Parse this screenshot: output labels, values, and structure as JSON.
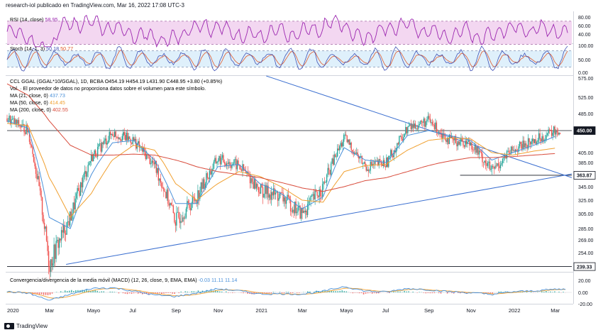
{
  "header": "research-iol publicado en TradingView.com, Mar 16, 2022 17:08 UTC-3",
  "footer": "TradingView",
  "colors": {
    "rsi": "#9c27b0",
    "rsi_band": "#f3d7f1",
    "stoch_k": "#3f51b5",
    "stoch_d": "#e05a2b",
    "stoch_band": "#dff0fb",
    "up": "#26a69a",
    "down": "#ef5350",
    "ma21": "#4a90d9",
    "ma50": "#f0a030",
    "ma200": "#d84b3b",
    "trendline": "#3b6fd0",
    "hline": "#131722",
    "macd_line": "#4a90d9",
    "signal_line": "#f0a030"
  },
  "rsi": {
    "label": "RSI (14, close)",
    "value": "58.95",
    "ticks": [
      "80.00",
      "60.00",
      "40.00"
    ]
  },
  "stoch": {
    "label": "Stoch (14, 1, 3)",
    "k": "50.18",
    "d": "50.77",
    "ticks": [
      "100.00",
      "50.00",
      "0.00"
    ]
  },
  "price": {
    "legend_symbol": "CCL GGAL (GGAL*10/GGAL), 1D, BCBA",
    "legend_values": "O454.19 H454.19 L431.90 C448.95 +3.80 (+0.85%)",
    "legend_vol": "Vol. · El proveedor de datos no proporciona datos sobre el volumen para este símbolo.",
    "ma21": {
      "label": "MA (21, close, 0)",
      "value": "437.73"
    },
    "ma50": {
      "label": "MA (50, close, 0)",
      "value": "414.45"
    },
    "ma200": {
      "label": "MA (200, close, 0)",
      "value": "402.55"
    },
    "ticks": [
      "575.00",
      "525.00",
      "485.00",
      "450.00",
      "405.00",
      "385.00",
      "345.00",
      "325.00",
      "305.00",
      "285.00",
      "269.00",
      "254.00",
      "239.00"
    ],
    "badges": [
      {
        "text": "450.00",
        "dark": true
      },
      {
        "text": "363.87",
        "dark": false
      },
      {
        "text": "239.33",
        "dark": false
      }
    ],
    "resistance": 450.0,
    "support": 363.87,
    "floor": 239.33
  },
  "macd": {
    "label": "Convergencia/divergencia de la media móvil (MACD) (12, 26, close, 9, EMA, EMA)",
    "values": "-0.03  11.11  11.14",
    "ticks": [
      "20.00",
      "0.00",
      "-20.00"
    ]
  },
  "x_axis": [
    "2020",
    "Mar",
    "Mayo",
    "Jul",
    "Sep",
    "Nov",
    "2021",
    "Mar",
    "Mayo",
    "Jul",
    "Sep",
    "Nov",
    "2022",
    "Mar"
  ],
  "chart_data": {
    "type": "line",
    "title": "CCL GGAL (GGAL*10/GGAL), 1D, BCBA",
    "x_unit": "months since Jan 2020",
    "x": [
      0,
      1,
      2,
      3,
      4,
      5,
      6,
      7,
      8,
      9,
      10,
      11,
      12,
      13,
      14,
      15,
      16,
      17,
      18,
      19,
      20,
      21,
      22,
      23,
      24,
      25,
      26
    ],
    "xlim": [
      0,
      26.8
    ],
    "ylim": [
      239,
      575
    ],
    "series": [
      {
        "name": "Close",
        "values": [
          475,
          450,
          240,
          300,
          395,
          445,
          430,
          380,
          295,
          330,
          392,
          380,
          340,
          330,
          305,
          345,
          435,
          378,
          385,
          455,
          470,
          430,
          425,
          370,
          410,
          430,
          449
        ]
      },
      {
        "name": "MA (21, close, 0)",
        "values": [
          470,
          455,
          300,
          285,
          365,
          425,
          430,
          390,
          320,
          320,
          378,
          382,
          350,
          335,
          312,
          330,
          415,
          390,
          385,
          440,
          450,
          440,
          430,
          390,
          405,
          420,
          438
        ]
      },
      {
        "name": "MA (50, close, 0)",
        "values": [
          465,
          460,
          360,
          300,
          335,
          390,
          420,
          410,
          350,
          325,
          350,
          370,
          362,
          345,
          325,
          322,
          370,
          380,
          382,
          410,
          430,
          435,
          433,
          405,
          400,
          408,
          414
        ]
      },
      {
        "name": "MA (200, close, 0)",
        "values": [
          560,
          530,
          470,
          420,
          400,
          400,
          402,
          400,
          390,
          378,
          370,
          365,
          360,
          352,
          343,
          338,
          345,
          355,
          360,
          370,
          380,
          388,
          395,
          395,
          397,
          400,
          403
        ]
      }
    ]
  }
}
